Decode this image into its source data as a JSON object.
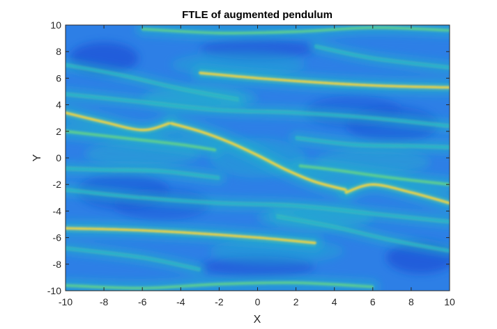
{
  "chart_data": {
    "type": "heatmap",
    "title": "FTLE of augmented pendulum",
    "xlabel": "X",
    "ylabel": "Y",
    "xlim": [
      -10,
      10
    ],
    "ylim": [
      -10,
      10
    ],
    "xticks": [
      -10,
      -8,
      -6,
      -4,
      -2,
      0,
      2,
      4,
      6,
      8,
      10
    ],
    "yticks": [
      -10,
      -8,
      -6,
      -4,
      -2,
      0,
      2,
      4,
      6,
      8,
      10
    ],
    "colormap": "parula",
    "colors": {
      "low": "#1a4fd6",
      "mid_low": "#2d7fe6",
      "mid": "#20b7c9",
      "mid_high": "#5fd08e",
      "high": "#f5d53a"
    },
    "ridges": [
      {
        "name": "central-manifold",
        "x": [
          -4.5,
          -3,
          -1.5,
          0,
          1.5,
          3,
          4.6
        ],
        "y": [
          2.6,
          2.0,
          1.2,
          0.2,
          -0.9,
          -1.8,
          -2.4
        ],
        "intensity": 1.0
      },
      {
        "name": "left-lobe-upper",
        "x": [
          -10,
          -8,
          -6,
          -4.6
        ],
        "y": [
          3.4,
          2.7,
          2.1,
          2.6
        ],
        "intensity": 0.9
      },
      {
        "name": "left-lobe-lower",
        "x": [
          -10,
          -7,
          -4,
          -2.2
        ],
        "y": [
          2.0,
          1.5,
          1.0,
          0.6
        ],
        "intensity": 0.75
      },
      {
        "name": "right-lobe-upper",
        "x": [
          2.2,
          4,
          7,
          10
        ],
        "y": [
          -0.6,
          -0.9,
          -1.5,
          -2.0
        ],
        "intensity": 0.75
      },
      {
        "name": "right-lobe-lower",
        "x": [
          4.6,
          6,
          8,
          10
        ],
        "y": [
          -2.6,
          -2.0,
          -2.6,
          -3.4
        ],
        "intensity": 0.9
      },
      {
        "name": "upper-band",
        "x": [
          -3,
          0,
          4,
          7,
          10
        ],
        "y": [
          6.4,
          6.0,
          5.6,
          5.4,
          5.3
        ],
        "intensity": 0.85
      },
      {
        "name": "lower-band",
        "x": [
          -10,
          -7,
          -4,
          0,
          3
        ],
        "y": [
          -5.3,
          -5.4,
          -5.6,
          -6.0,
          -6.4
        ],
        "intensity": 0.85
      },
      {
        "name": "top-edge",
        "x": [
          -6,
          -2,
          2,
          6,
          10
        ],
        "y": [
          9.7,
          9.4,
          9.5,
          9.8,
          9.6
        ],
        "intensity": 0.6
      },
      {
        "name": "bottom-edge",
        "x": [
          -10,
          -6,
          -2,
          2,
          6
        ],
        "y": [
          -9.6,
          -9.8,
          -9.5,
          -9.4,
          -9.7
        ],
        "intensity": 0.6
      },
      {
        "name": "upper-streak",
        "x": [
          -10,
          -6,
          -2,
          2,
          6,
          10
        ],
        "y": [
          4.8,
          4.2,
          3.6,
          3.4,
          3.0,
          2.4
        ],
        "intensity": 0.45
      },
      {
        "name": "lower-streak",
        "x": [
          -10,
          -6,
          -2,
          2,
          6,
          10
        ],
        "y": [
          -2.4,
          -3.0,
          -3.4,
          -3.6,
          -4.2,
          -4.8
        ],
        "intensity": 0.45
      },
      {
        "name": "right-upper-streak",
        "x": [
          2,
          5,
          8,
          10
        ],
        "y": [
          1.5,
          1.0,
          0.9,
          0.8
        ],
        "intensity": 0.5
      },
      {
        "name": "left-lower-streak",
        "x": [
          -10,
          -8,
          -5,
          -2
        ],
        "y": [
          -0.8,
          -0.9,
          -1.0,
          -1.5
        ],
        "intensity": 0.5
      },
      {
        "name": "upper-left-sweep",
        "x": [
          -10,
          -7,
          -4,
          -1
        ],
        "y": [
          7.0,
          6.2,
          5.2,
          4.4
        ],
        "intensity": 0.4
      },
      {
        "name": "lower-right-sweep",
        "x": [
          1,
          4,
          7,
          10
        ],
        "y": [
          -4.4,
          -5.2,
          -6.2,
          -7.0
        ],
        "intensity": 0.4
      },
      {
        "name": "top-right-band",
        "x": [
          3,
          6,
          10
        ],
        "y": [
          8.4,
          7.5,
          6.8
        ],
        "intensity": 0.4
      },
      {
        "name": "bottom-left-band",
        "x": [
          -10,
          -6,
          -3
        ],
        "y": [
          -6.8,
          -7.5,
          -8.4
        ],
        "intensity": 0.4
      }
    ]
  }
}
